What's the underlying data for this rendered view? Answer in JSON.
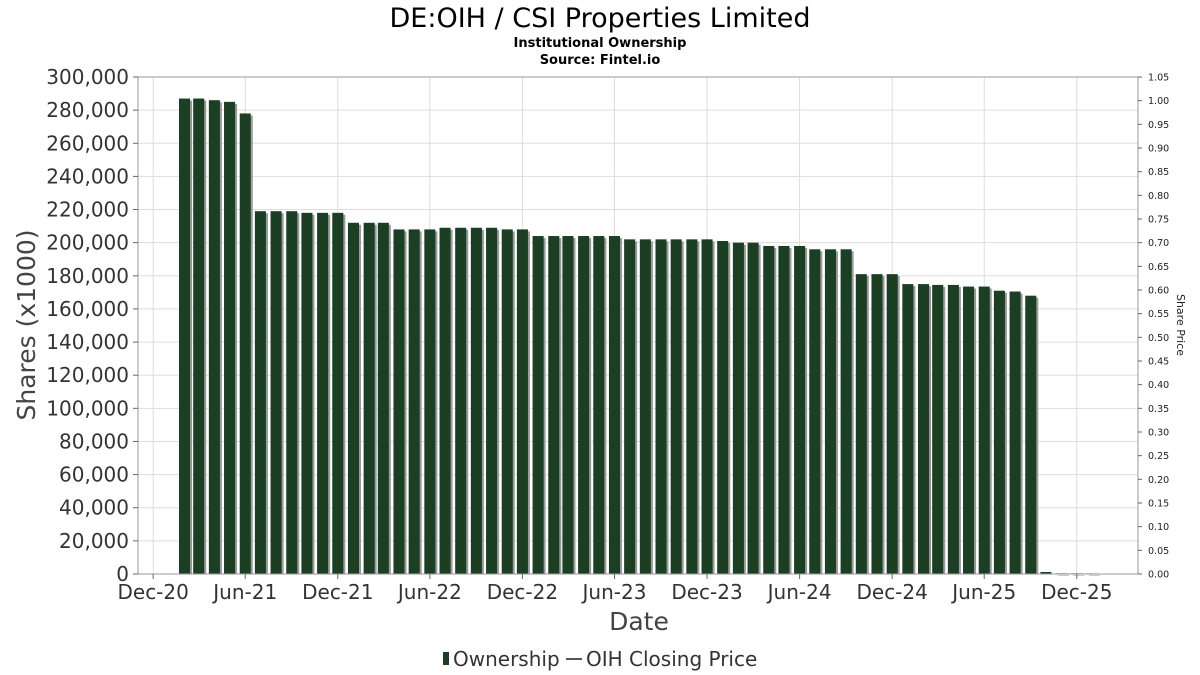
{
  "chart_data": {
    "type": "bar",
    "title": "DE:OIH / CSI Properties Limited",
    "subtitle": "Institutional Ownership",
    "source": "Source: Fintel.io",
    "xlabel": "Date",
    "ylabel": "Shares (x1000)",
    "y2label": "Share Price",
    "ylim": [
      0,
      300000
    ],
    "y2lim": [
      0,
      1.05
    ],
    "yticks": [
      "0",
      "20,000",
      "40,000",
      "60,000",
      "80,000",
      "100,000",
      "120,000",
      "140,000",
      "160,000",
      "180,000",
      "200,000",
      "220,000",
      "240,000",
      "260,000",
      "280,000",
      "300,000"
    ],
    "y2ticks": [
      "0.00",
      "0.05",
      "0.10",
      "0.15",
      "0.20",
      "0.25",
      "0.30",
      "0.35",
      "0.40",
      "0.45",
      "0.50",
      "0.55",
      "0.60",
      "0.65",
      "0.70",
      "0.75",
      "0.80",
      "0.85",
      "0.90",
      "0.95",
      "1.00",
      "1.05"
    ],
    "xlim": [
      "2020-11-01",
      "2026-04-01"
    ],
    "xticks": [
      {
        "label": "Dec-20",
        "date": "2020-12-01"
      },
      {
        "label": "Jun-21",
        "date": "2021-06-01"
      },
      {
        "label": "Dec-21",
        "date": "2021-12-01"
      },
      {
        "label": "Jun-22",
        "date": "2022-06-01"
      },
      {
        "label": "Dec-22",
        "date": "2022-12-01"
      },
      {
        "label": "Jun-23",
        "date": "2023-06-01"
      },
      {
        "label": "Dec-23",
        "date": "2023-12-01"
      },
      {
        "label": "Jun-24",
        "date": "2024-06-01"
      },
      {
        "label": "Dec-24",
        "date": "2024-12-01"
      },
      {
        "label": "Jun-25",
        "date": "2025-06-01"
      },
      {
        "label": "Dec-25",
        "date": "2025-12-01"
      }
    ],
    "grid": true,
    "legend_position": "bottom-center",
    "series": [
      {
        "name": "Ownership",
        "color": "#1b3f22",
        "points": [
          {
            "date": "2021-02-01",
            "value": 287000
          },
          {
            "date": "2021-03-01",
            "value": 287000
          },
          {
            "date": "2021-04-01",
            "value": 286000
          },
          {
            "date": "2021-05-01",
            "value": 285000
          },
          {
            "date": "2021-06-01",
            "value": 278000
          },
          {
            "date": "2021-07-01",
            "value": 219000
          },
          {
            "date": "2021-08-01",
            "value": 219000
          },
          {
            "date": "2021-09-01",
            "value": 219000
          },
          {
            "date": "2021-10-01",
            "value": 218000
          },
          {
            "date": "2021-11-01",
            "value": 218000
          },
          {
            "date": "2021-12-01",
            "value": 218000
          },
          {
            "date": "2022-01-01",
            "value": 212000
          },
          {
            "date": "2022-02-01",
            "value": 212000
          },
          {
            "date": "2022-03-01",
            "value": 212000
          },
          {
            "date": "2022-04-01",
            "value": 208000
          },
          {
            "date": "2022-05-01",
            "value": 208000
          },
          {
            "date": "2022-06-01",
            "value": 208000
          },
          {
            "date": "2022-07-01",
            "value": 209000
          },
          {
            "date": "2022-08-01",
            "value": 209000
          },
          {
            "date": "2022-09-01",
            "value": 209000
          },
          {
            "date": "2022-10-01",
            "value": 209000
          },
          {
            "date": "2022-11-01",
            "value": 208000
          },
          {
            "date": "2022-12-01",
            "value": 208000
          },
          {
            "date": "2023-01-01",
            "value": 204000
          },
          {
            "date": "2023-02-01",
            "value": 204000
          },
          {
            "date": "2023-03-01",
            "value": 204000
          },
          {
            "date": "2023-04-01",
            "value": 204000
          },
          {
            "date": "2023-05-01",
            "value": 204000
          },
          {
            "date": "2023-06-01",
            "value": 204000
          },
          {
            "date": "2023-07-01",
            "value": 202000
          },
          {
            "date": "2023-08-01",
            "value": 202000
          },
          {
            "date": "2023-09-01",
            "value": 202000
          },
          {
            "date": "2023-10-01",
            "value": 202000
          },
          {
            "date": "2023-11-01",
            "value": 202000
          },
          {
            "date": "2023-12-01",
            "value": 202000
          },
          {
            "date": "2024-01-01",
            "value": 201000
          },
          {
            "date": "2024-02-01",
            "value": 200000
          },
          {
            "date": "2024-03-01",
            "value": 200000
          },
          {
            "date": "2024-04-01",
            "value": 198000
          },
          {
            "date": "2024-05-01",
            "value": 198000
          },
          {
            "date": "2024-06-01",
            "value": 198000
          },
          {
            "date": "2024-07-01",
            "value": 196000
          },
          {
            "date": "2024-08-01",
            "value": 196000
          },
          {
            "date": "2024-09-01",
            "value": 196000
          },
          {
            "date": "2024-10-01",
            "value": 181000
          },
          {
            "date": "2024-11-01",
            "value": 181000
          },
          {
            "date": "2024-12-01",
            "value": 181000
          },
          {
            "date": "2025-01-01",
            "value": 175000
          },
          {
            "date": "2025-02-01",
            "value": 175000
          },
          {
            "date": "2025-03-01",
            "value": 174500
          },
          {
            "date": "2025-04-01",
            "value": 174500
          },
          {
            "date": "2025-05-01",
            "value": 173500
          },
          {
            "date": "2025-06-01",
            "value": 173500
          },
          {
            "date": "2025-07-01",
            "value": 171000
          },
          {
            "date": "2025-08-01",
            "value": 170500
          },
          {
            "date": "2025-09-01",
            "value": 168000
          },
          {
            "date": "2025-10-01",
            "value": 1200
          },
          {
            "date": "2025-11-01",
            "value": 400
          },
          {
            "date": "2025-12-01",
            "value": 400
          },
          {
            "date": "2026-01-01",
            "value": 300
          }
        ]
      },
      {
        "name": "OIH Closing Price",
        "color": "#555555",
        "points": []
      }
    ]
  }
}
